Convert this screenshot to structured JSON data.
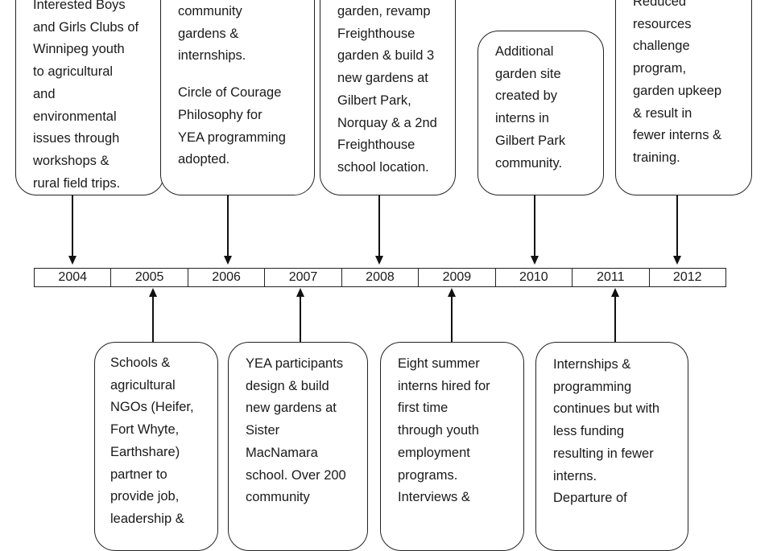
{
  "timeline": {
    "years": [
      "2004",
      "2005",
      "2006",
      "2007",
      "2008",
      "2009",
      "2010",
      "2011",
      "2012"
    ]
  },
  "events": [
    {
      "year": "2004",
      "side": "top",
      "paragraphs": [
        [
          "Interested Boys",
          "and Girls Clubs of",
          "Winnipeg youth",
          "to agricultural",
          "and",
          "environmental",
          "issues through",
          "workshops &",
          "rural field trips."
        ]
      ]
    },
    {
      "year": "2006",
      "side": "top",
      "paragraphs": [
        [
          "community",
          "gardens &",
          "internships."
        ],
        [
          "Circle of Courage",
          "Philosophy for",
          "YEA programming",
          "adopted."
        ]
      ]
    },
    {
      "year": "2008",
      "side": "top",
      "paragraphs": [
        [
          "garden, revamp",
          "Freighthouse",
          "garden & build 3",
          "new gardens at",
          "Gilbert Park,",
          "Norquay & a 2nd",
          "Freighthouse",
          "school location."
        ]
      ]
    },
    {
      "year": "2010",
      "side": "top",
      "paragraphs": [
        [
          "Additional",
          "garden site",
          "created by",
          "interns in",
          "Gilbert Park",
          "community."
        ]
      ]
    },
    {
      "year": "2012",
      "side": "top",
      "paragraphs": [
        [
          "Reduced",
          "resources",
          "challenge",
          "program,",
          "garden upkeep",
          "& result in",
          "fewer interns &",
          "training."
        ]
      ]
    },
    {
      "year": "2005",
      "side": "bottom",
      "paragraphs": [
        [
          "Schools &",
          "agricultural",
          "NGOs (Heifer,",
          "Fort Whyte,",
          "Earthshare)",
          "partner to",
          "provide job,",
          "leadership &"
        ]
      ]
    },
    {
      "year": "2007",
      "side": "bottom",
      "paragraphs": [
        [
          "YEA participants",
          "design & build",
          "new gardens at",
          "Sister",
          "MacNamara",
          "school. Over 200",
          "community"
        ]
      ]
    },
    {
      "year": "2009",
      "side": "bottom",
      "paragraphs": [
        [
          "Eight summer",
          "interns hired for",
          "first time",
          "through youth",
          "employment",
          "programs.",
          "Interviews &"
        ]
      ]
    },
    {
      "year": "2011",
      "side": "bottom",
      "paragraphs": [
        [
          "Internships &",
          "programming",
          "continues but with",
          "less funding",
          "resulting in fewer",
          "interns.",
          "Departure of"
        ]
      ]
    }
  ]
}
